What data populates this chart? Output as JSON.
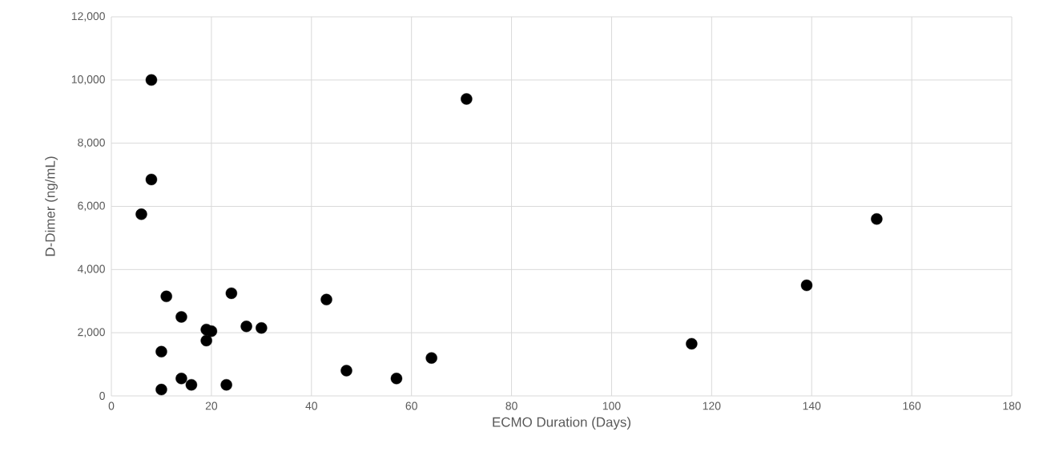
{
  "chart_data": {
    "type": "scatter",
    "xlabel": "ECMO Duration (Days)",
    "ylabel": "D-Dimer (ng/mL)",
    "x": [
      6,
      8,
      8,
      10,
      10,
      11,
      14,
      14,
      16,
      19,
      19,
      20,
      23,
      24,
      27,
      30,
      43,
      47,
      57,
      64,
      71,
      116,
      139,
      153
    ],
    "values": [
      5750,
      10000,
      6850,
      1400,
      200,
      3150,
      2500,
      550,
      350,
      2100,
      1750,
      2050,
      350,
      3250,
      2200,
      2150,
      3050,
      800,
      550,
      1200,
      9400,
      1650,
      3500,
      5600
    ],
    "color": "#000000",
    "marker": "circle",
    "xlim": [
      0,
      180
    ],
    "xticks": [
      0,
      20,
      40,
      60,
      80,
      100,
      120,
      140,
      160,
      180
    ],
    "ylim": [
      0,
      12000
    ],
    "yticks": [
      {
        "value": 0,
        "label": "0"
      },
      {
        "value": 2000,
        "label": "2,000"
      },
      {
        "value": 4000,
        "label": "4,000"
      },
      {
        "value": 6000,
        "label": "6,000"
      },
      {
        "value": 8000,
        "label": "8,000"
      },
      {
        "value": 10000,
        "label": "10,000"
      },
      {
        "value": 12000,
        "label": "12,000"
      }
    ],
    "grid": true
  }
}
